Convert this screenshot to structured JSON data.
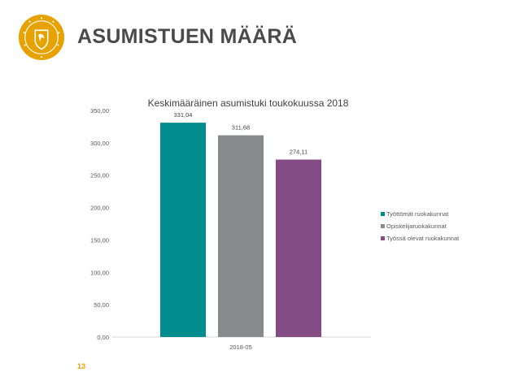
{
  "slide": {
    "title": "ASUMISTUEN MÄÄRÄ",
    "page_number": "13",
    "logo": "coat-of-arms-lion-emblem",
    "accent_color": "#e8a200"
  },
  "chart_data": {
    "type": "bar",
    "title": "Keskimääräinen asumistuki toukokuussa 2018",
    "categories": [
      "2018-05"
    ],
    "series": [
      {
        "name": "Työttömät ruokakunnat",
        "values": [
          331.04
        ],
        "label": "331,04",
        "color": "#008b8e"
      },
      {
        "name": "Opiskelijaruokakunnat",
        "values": [
          311.68
        ],
        "label": "311,68",
        "color": "#888b8e"
      },
      {
        "name": "Työssä olevat ruokakunnat",
        "values": [
          274.11
        ],
        "label": "274,11",
        "color": "#844c84"
      }
    ],
    "ylim": [
      0,
      350
    ],
    "yticks": [
      0,
      50,
      100,
      150,
      200,
      250,
      300,
      350
    ],
    "ytick_labels": [
      "0,00",
      "50,00",
      "100,00",
      "150,00",
      "200,00",
      "250,00",
      "300,00",
      "350,00"
    ],
    "xlabel": "",
    "ylabel": "",
    "grid": false,
    "legend_position": "right"
  }
}
